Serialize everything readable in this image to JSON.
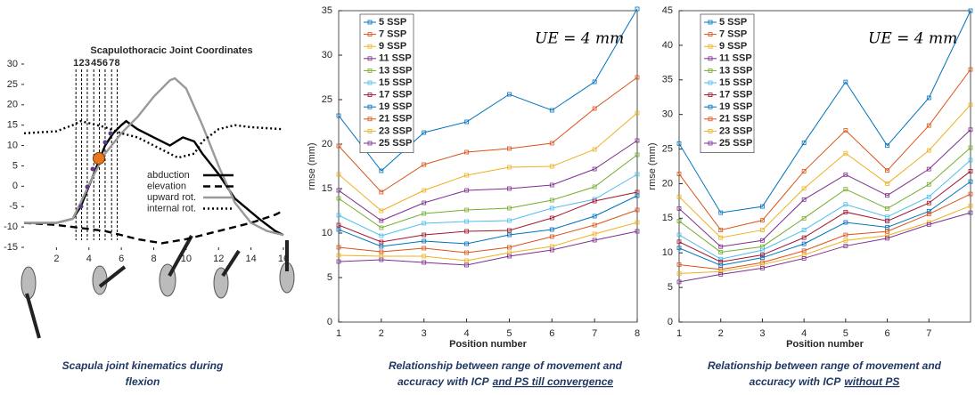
{
  "chart_data": [
    {
      "type": "line",
      "title": "Scapulothoracic Joint Coordinates",
      "xlim": [
        0,
        16
      ],
      "ylim": [
        -15,
        30
      ],
      "xticks": [
        2,
        4,
        6,
        8,
        10,
        12,
        14,
        16
      ],
      "yticks": [
        -15,
        -10,
        -5,
        0,
        5,
        10,
        15,
        20,
        25,
        30
      ],
      "legend": "right",
      "positions": {
        "x": [
          3.2,
          3.55,
          3.9,
          4.3,
          4.65,
          5.0,
          5.4,
          5.75
        ],
        "labels": [
          "1",
          "2",
          "3",
          "4",
          "5",
          "6",
          "7",
          "8"
        ],
        "color": "#e00000"
      },
      "series": [
        {
          "name": "abduction",
          "color": "#000000",
          "dash": "solid",
          "x": [
            0,
            2,
            3,
            3.5,
            4,
            4.5,
            5,
            5.5,
            6,
            6.3,
            7,
            8,
            9,
            9.8,
            10.5,
            11,
            12,
            13,
            14.5,
            15.5,
            16
          ],
          "values": [
            -9,
            -9,
            -8,
            -5,
            0,
            5,
            10,
            13,
            15,
            16,
            14,
            12,
            10,
            12,
            11,
            8,
            3,
            -3,
            -8,
            -11,
            -12
          ]
        },
        {
          "name": "elevation",
          "color": "#000000",
          "dash": "dashed",
          "x": [
            0,
            2,
            3,
            5,
            7,
            8.5,
            10,
            12,
            14,
            15.5,
            16
          ],
          "values": [
            -9,
            -9.5,
            -10,
            -11,
            -13,
            -14,
            -13,
            -11,
            -9,
            -7,
            -6
          ]
        },
        {
          "name": "upward rot.",
          "color": "#999999",
          "dash": "solid",
          "x": [
            0,
            2,
            3,
            3.5,
            4.2,
            5,
            6,
            7,
            8,
            9,
            9.3,
            10,
            11,
            12,
            13,
            14,
            15,
            16
          ],
          "values": [
            -9,
            -9,
            -8,
            -4,
            2,
            8,
            13,
            17,
            22,
            26,
            26.5,
            24,
            15,
            5,
            -4,
            -9,
            -11,
            -12
          ]
        },
        {
          "name": "internal rot.",
          "color": "#000000",
          "dash": "dotted",
          "x": [
            0,
            2,
            3,
            3.5,
            5,
            6,
            7,
            8.5,
            9.5,
            10.5,
            11,
            12,
            13,
            14,
            16
          ],
          "values": [
            13,
            13.5,
            15,
            16,
            14.5,
            13,
            12,
            9,
            7,
            8,
            11,
            14,
            15,
            14.5,
            14
          ]
        }
      ],
      "caption": [
        "Scapula joint kinematics during",
        "flexion"
      ]
    },
    {
      "type": "line",
      "ylabel": "rmse (mm)",
      "xlabel": "Position number",
      "annotation": "UE = 4 mm",
      "x": [
        1,
        2,
        3,
        4,
        5,
        6,
        7,
        8
      ],
      "xlim": [
        1,
        8
      ],
      "ylim": [
        0,
        35
      ],
      "xticks": [
        1,
        2,
        3,
        4,
        5,
        6,
        7,
        8
      ],
      "yticks": [
        0,
        5,
        10,
        15,
        20,
        25,
        30,
        35
      ],
      "marker": "square",
      "legend": "upper left",
      "series": [
        {
          "name": "5 SSP",
          "color": "#0072BD",
          "values": [
            23.2,
            17.0,
            21.3,
            22.5,
            25.6,
            23.8,
            27.0,
            35.2
          ]
        },
        {
          "name": "7 SSP",
          "color": "#D95319",
          "values": [
            19.8,
            14.6,
            17.7,
            19.1,
            19.5,
            20.1,
            24.0,
            27.5
          ]
        },
        {
          "name": "9 SSP",
          "color": "#EDB120",
          "values": [
            16.6,
            12.5,
            14.8,
            16.5,
            17.4,
            17.5,
            19.4,
            23.5
          ]
        },
        {
          "name": "11 SSP",
          "color": "#7E2F8E",
          "values": [
            14.8,
            11.4,
            13.4,
            14.8,
            15.0,
            15.4,
            17.2,
            20.4
          ]
        },
        {
          "name": "13 SSP",
          "color": "#77AC30",
          "values": [
            13.9,
            10.6,
            12.2,
            12.6,
            12.8,
            13.7,
            15.2,
            18.8
          ]
        },
        {
          "name": "15 SSP",
          "color": "#4DBEEE",
          "values": [
            12.0,
            9.7,
            11.1,
            11.3,
            11.4,
            12.8,
            13.8,
            16.6
          ]
        },
        {
          "name": "17 SSP",
          "color": "#A2142F",
          "values": [
            10.9,
            9.0,
            9.8,
            10.2,
            10.3,
            11.7,
            13.6,
            14.6
          ]
        },
        {
          "name": "19 SSP",
          "color": "#0072BD",
          "values": [
            10.4,
            8.5,
            9.1,
            8.8,
            9.8,
            10.4,
            11.9,
            14.2
          ]
        },
        {
          "name": "21 SSP",
          "color": "#D95319",
          "values": [
            8.4,
            7.9,
            8.3,
            7.8,
            8.4,
            9.6,
            10.9,
            12.6
          ]
        },
        {
          "name": "23 SSP",
          "color": "#EDB120",
          "values": [
            7.5,
            7.4,
            7.4,
            6.9,
            7.8,
            8.5,
            9.9,
            11.2
          ]
        },
        {
          "name": "25 SSP",
          "color": "#7E2F8E",
          "values": [
            6.8,
            7.0,
            6.7,
            6.4,
            7.4,
            8.1,
            9.2,
            10.2
          ]
        }
      ],
      "caption": [
        "Relationship between range of movement and",
        "accuracy with ICP"
      ],
      "caption_underlined": "and PS till convergence"
    },
    {
      "type": "line",
      "ylabel": "rmse (mm)",
      "xlabel": "Position number",
      "annotation": "UE = 4 mm",
      "x": [
        1,
        2,
        3,
        4,
        5,
        6,
        7,
        8
      ],
      "xlim": [
        1,
        8
      ],
      "ylim": [
        0,
        45
      ],
      "xticks": [
        1,
        2,
        3,
        4,
        5,
        6,
        7
      ],
      "yticks": [
        0,
        5,
        10,
        15,
        20,
        25,
        30,
        35,
        40,
        45
      ],
      "marker": "square",
      "legend": "upper left",
      "series": [
        {
          "name": "5 SSP",
          "color": "#0072BD",
          "values": [
            25.8,
            15.8,
            16.7,
            25.9,
            34.7,
            25.5,
            32.4,
            45.0
          ]
        },
        {
          "name": "7 SSP",
          "color": "#D95319",
          "values": [
            21.4,
            13.3,
            14.7,
            21.8,
            27.7,
            21.9,
            28.4,
            36.5
          ]
        },
        {
          "name": "9 SSP",
          "color": "#EDB120",
          "values": [
            18.1,
            12.2,
            13.3,
            19.3,
            24.4,
            20.0,
            24.8,
            31.4
          ]
        },
        {
          "name": "11 SSP",
          "color": "#7E2F8E",
          "values": [
            16.4,
            10.9,
            11.8,
            17.7,
            21.3,
            18.3,
            22.1,
            27.8
          ]
        },
        {
          "name": "13 SSP",
          "color": "#77AC30",
          "values": [
            14.6,
            10.1,
            10.9,
            15.0,
            19.2,
            16.4,
            19.9,
            25.2
          ]
        },
        {
          "name": "15 SSP",
          "color": "#4DBEEE",
          "values": [
            12.6,
            9.1,
            10.4,
            13.3,
            17.0,
            15.2,
            18.1,
            23.4
          ]
        },
        {
          "name": "17 SSP",
          "color": "#A2142F",
          "values": [
            11.6,
            8.7,
            9.7,
            12.2,
            15.9,
            14.6,
            17.2,
            21.8
          ]
        },
        {
          "name": "19 SSP",
          "color": "#0072BD",
          "values": [
            10.7,
            8.2,
            9.3,
            11.3,
            14.4,
            13.7,
            16.0,
            20.3
          ]
        },
        {
          "name": "21 SSP",
          "color": "#D95319",
          "values": [
            8.3,
            7.6,
            8.6,
            10.3,
            12.6,
            13.1,
            15.6,
            18.5
          ]
        },
        {
          "name": "23 SSP",
          "color": "#EDB120",
          "values": [
            7.0,
            7.3,
            8.3,
            9.7,
            11.8,
            12.5,
            14.4,
            16.8
          ]
        },
        {
          "name": "25 SSP",
          "color": "#7E2F8E",
          "values": [
            5.8,
            6.9,
            7.8,
            9.2,
            11.0,
            12.1,
            14.1,
            15.8
          ]
        }
      ],
      "caption": [
        "Relationship between range of movement and",
        "accuracy with ICP"
      ],
      "caption_underlined": "without PS"
    }
  ]
}
